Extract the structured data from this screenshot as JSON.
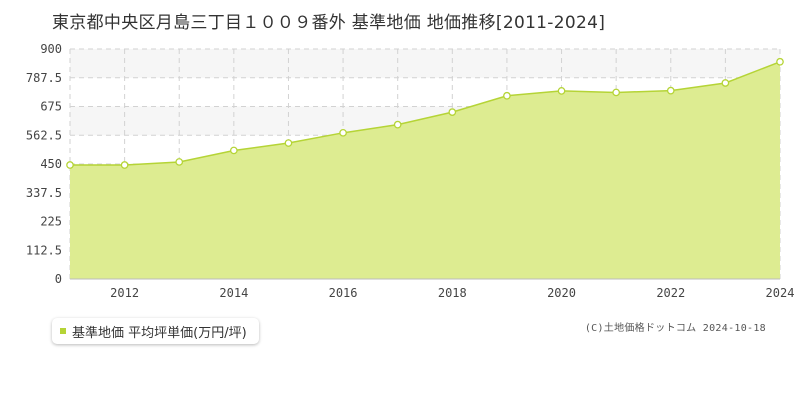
{
  "title": "東京都中央区月島三丁目１００９番外 基準地価 地価推移[2011-2024]",
  "legend": {
    "label": "基準地価 平均坪単価(万円/坪)"
  },
  "copyright": "(C)土地価格ドットコム 2024-10-18",
  "colors": {
    "fill": "#ddec91",
    "line": "#b5d436",
    "marker_stroke": "#b5d436",
    "grid": "#d2d2d2",
    "band": "#f6f6f6"
  },
  "chart_data": {
    "type": "area",
    "title": "東京都中央区月島三丁目１００９番外 基準地価 地価推移[2011-2024]",
    "x": [
      2011,
      2012,
      2013,
      2014,
      2015,
      2016,
      2017,
      2018,
      2019,
      2020,
      2021,
      2022,
      2023,
      2024
    ],
    "series": [
      {
        "name": "基準地価 平均坪単価(万円/坪)",
        "values": [
          446,
          446,
          458,
          503,
          532,
          572,
          604,
          653,
          717,
          736,
          730,
          737,
          767,
          850
        ]
      }
    ],
    "xlim": [
      2011,
      2024
    ],
    "ylim": [
      0,
      900
    ],
    "y_ticks": [
      "0",
      "112.5",
      "225",
      "337.5",
      "450",
      "562.5",
      "675",
      "787.5",
      "900"
    ],
    "x_ticks": [
      "2012",
      "2014",
      "2016",
      "2018",
      "2020",
      "2022",
      "2024"
    ],
    "grid": true,
    "legend_position": "bottom-left"
  }
}
